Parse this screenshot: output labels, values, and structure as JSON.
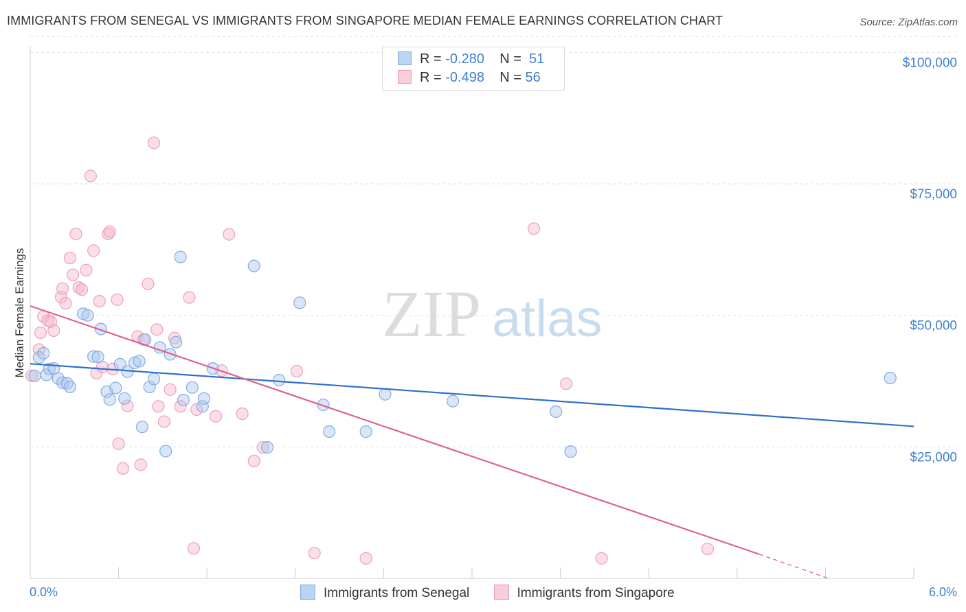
{
  "title": "IMMIGRANTS FROM SENEGAL VS IMMIGRANTS FROM SINGAPORE MEDIAN FEMALE EARNINGS CORRELATION CHART",
  "source": "Source: ZipAtlas.com",
  "watermark": {
    "zip": "ZIP",
    "atlas": "atlas"
  },
  "legend": {
    "senegal": {
      "r_label": "R = ",
      "r_value": "-0.280",
      "n_label": "N = ",
      "n_value": "51"
    },
    "singapore": {
      "r_label": "R = ",
      "r_value": "-0.498",
      "n_label": "N = ",
      "n_value": "56"
    }
  },
  "bottom_legend": {
    "senegal": "Immigrants from Senegal",
    "singapore": "Immigrants from Singapore"
  },
  "colors": {
    "senegal_fill": "#a9c8f0",
    "senegal_line": "#2f6fcc",
    "singapore_fill": "#f4b8cb",
    "singapore_line": "#e0608f",
    "axis_text": "#3f7fcf"
  },
  "chart_data": {
    "type": "scatter",
    "title": "IMMIGRANTS FROM SENEGAL VS IMMIGRANTS FROM SINGAPORE MEDIAN FEMALE EARNINGS CORRELATION CHART",
    "xlabel": "",
    "ylabel": "Median Female Earnings",
    "xlim": [
      0,
      6
    ],
    "ylim": [
      0,
      102000
    ],
    "x_tick_labels": [
      "0.0%",
      "6.0%"
    ],
    "y_ticks": [
      25000,
      50000,
      75000,
      100000
    ],
    "y_tick_labels": [
      "$25,000",
      "$50,000",
      "$75,000",
      "$100,000"
    ],
    "series": [
      {
        "name": "Immigrants from Senegal",
        "R": -0.28,
        "N": 51,
        "trend": {
          "x0": 0,
          "y0": 40800,
          "x1": 6,
          "y1": 28900
        },
        "points": [
          [
            0.03,
            38500
          ],
          [
            0.06,
            42000
          ],
          [
            0.09,
            42800
          ],
          [
            0.11,
            38700
          ],
          [
            0.13,
            39800
          ],
          [
            0.16,
            39900
          ],
          [
            0.19,
            38000
          ],
          [
            0.22,
            37200
          ],
          [
            0.25,
            37100
          ],
          [
            0.27,
            36400
          ],
          [
            0.36,
            50300
          ],
          [
            0.39,
            50000
          ],
          [
            0.43,
            42200
          ],
          [
            0.46,
            42100
          ],
          [
            0.48,
            47400
          ],
          [
            0.52,
            35500
          ],
          [
            0.54,
            34000
          ],
          [
            0.58,
            36200
          ],
          [
            0.61,
            40700
          ],
          [
            0.64,
            34200
          ],
          [
            0.66,
            39300
          ],
          [
            0.71,
            41000
          ],
          [
            0.74,
            41300
          ],
          [
            0.76,
            28800
          ],
          [
            0.78,
            45400
          ],
          [
            0.81,
            36400
          ],
          [
            0.84,
            37900
          ],
          [
            0.88,
            43900
          ],
          [
            0.92,
            24200
          ],
          [
            0.95,
            42600
          ],
          [
            0.99,
            44900
          ],
          [
            1.02,
            61100
          ],
          [
            1.04,
            33900
          ],
          [
            1.1,
            36300
          ],
          [
            1.17,
            32700
          ],
          [
            1.18,
            34200
          ],
          [
            1.24,
            39900
          ],
          [
            1.52,
            59400
          ],
          [
            1.61,
            24900
          ],
          [
            1.69,
            37700
          ],
          [
            1.83,
            52400
          ],
          [
            1.99,
            33000
          ],
          [
            2.03,
            27900
          ],
          [
            2.28,
            27900
          ],
          [
            2.41,
            35000
          ],
          [
            2.87,
            33700
          ],
          [
            3.57,
            31700
          ],
          [
            3.67,
            24100
          ],
          [
            5.84,
            38100
          ]
        ]
      },
      {
        "name": "Immigrants from Singapore",
        "R": -0.498,
        "N": 56,
        "trend": {
          "x0": 0,
          "y0": 51800,
          "x1": 4.95,
          "y1": 4600
        },
        "trend_dashed": {
          "x0": 4.95,
          "y0": 4600,
          "x1": 5.42,
          "y1": 0
        },
        "points": [
          [
            0.01,
            38500
          ],
          [
            0.06,
            43500
          ],
          [
            0.07,
            46700
          ],
          [
            0.09,
            49800
          ],
          [
            0.12,
            49000
          ],
          [
            0.14,
            48800
          ],
          [
            0.16,
            47100
          ],
          [
            0.21,
            53500
          ],
          [
            0.22,
            55100
          ],
          [
            0.24,
            52300
          ],
          [
            0.27,
            60900
          ],
          [
            0.29,
            57700
          ],
          [
            0.31,
            65500
          ],
          [
            0.33,
            55300
          ],
          [
            0.35,
            54900
          ],
          [
            0.38,
            58600
          ],
          [
            0.41,
            76500
          ],
          [
            0.43,
            62300
          ],
          [
            0.45,
            39000
          ],
          [
            0.47,
            52700
          ],
          [
            0.49,
            40200
          ],
          [
            0.53,
            65500
          ],
          [
            0.54,
            65900
          ],
          [
            0.56,
            39800
          ],
          [
            0.59,
            53000
          ],
          [
            0.6,
            25600
          ],
          [
            0.63,
            20900
          ],
          [
            0.66,
            32800
          ],
          [
            0.73,
            46000
          ],
          [
            0.75,
            21600
          ],
          [
            0.77,
            45400
          ],
          [
            0.8,
            56000
          ],
          [
            0.84,
            82800
          ],
          [
            0.86,
            47300
          ],
          [
            0.87,
            32700
          ],
          [
            0.91,
            29800
          ],
          [
            0.95,
            35900
          ],
          [
            0.98,
            45700
          ],
          [
            1.02,
            32700
          ],
          [
            1.08,
            53400
          ],
          [
            1.11,
            5700
          ],
          [
            1.13,
            32100
          ],
          [
            1.26,
            30800
          ],
          [
            1.3,
            39500
          ],
          [
            1.35,
            65400
          ],
          [
            1.44,
            31300
          ],
          [
            1.52,
            22300
          ],
          [
            1.58,
            24900
          ],
          [
            1.81,
            39400
          ],
          [
            1.93,
            4800
          ],
          [
            2.28,
            3800
          ],
          [
            3.42,
            66500
          ],
          [
            3.64,
            37000
          ],
          [
            3.88,
            3800
          ],
          [
            4.6,
            5600
          ]
        ]
      }
    ]
  }
}
